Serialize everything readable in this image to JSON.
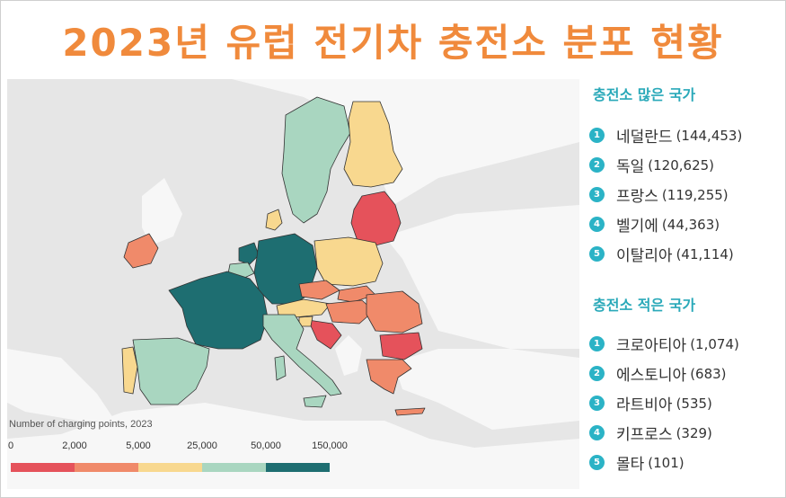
{
  "title": "2023년 유럽 전기차 충전소 분포 현황",
  "legend": {
    "title": "Number of charging points, 2023",
    "ticks": [
      "0",
      "2,000",
      "5,000",
      "25,000",
      "50,000",
      "150,000"
    ],
    "colors": [
      "#e5525b",
      "#f08a6a",
      "#f8d88f",
      "#a9d6c0",
      "#1e6e71"
    ]
  },
  "top": {
    "heading": "충전소 많은 국가",
    "items": [
      {
        "rank": "1",
        "name": "네덜란드",
        "value": "(144,453)"
      },
      {
        "rank": "2",
        "name": "독일",
        "value": "(120,625)"
      },
      {
        "rank": "3",
        "name": "프랑스",
        "value": "(119,255)"
      },
      {
        "rank": "4",
        "name": "벨기에",
        "value": "(44,363)"
      },
      {
        "rank": "5",
        "name": "이탈리아",
        "value": "(41,114)"
      }
    ]
  },
  "bottom": {
    "heading": "충전소 적은 국가",
    "items": [
      {
        "rank": "1",
        "name": "크로아티아",
        "value": "(1,074)"
      },
      {
        "rank": "2",
        "name": "에스토니아",
        "value": "(683)"
      },
      {
        "rank": "3",
        "name": "라트비아",
        "value": "(535)"
      },
      {
        "rank": "4",
        "name": "키프로스",
        "value": "(329)"
      },
      {
        "rank": "5",
        "name": "몰타",
        "value": "(101)"
      }
    ]
  },
  "map_colors": {
    "background": "#e6e6e6",
    "non_eu_land": "#f7f7f7",
    "border": "#333333"
  }
}
